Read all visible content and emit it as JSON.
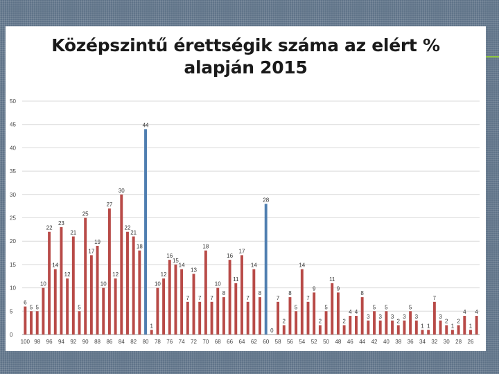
{
  "colors": {
    "background": "#5f7388",
    "panel": "#ffffff",
    "accent": "#8cc63f",
    "bar_default": "#b84a47",
    "bar_highlight": "#4f7eb0",
    "gridline": "#d9d9d9"
  },
  "chart_data": {
    "type": "bar",
    "title_line1": "Középszintű érettségik száma az elért %",
    "title_line2": "alapján 2015",
    "xlabel": "",
    "ylabel": "",
    "ylim": [
      0,
      50
    ],
    "yticks": [
      0,
      5,
      10,
      15,
      20,
      25,
      30,
      35,
      40,
      45,
      50
    ],
    "grid": true,
    "highlight_categories": [
      "80",
      "60"
    ],
    "categories": [
      "100",
      "99",
      "98",
      "97",
      "96",
      "95",
      "94",
      "93",
      "92",
      "91",
      "90",
      "89",
      "88",
      "87",
      "86",
      "85",
      "84",
      "83",
      "82",
      "81",
      "80",
      "79",
      "78",
      "77",
      "76",
      "75",
      "74",
      "73",
      "72",
      "71",
      "70",
      "69",
      "68",
      "67",
      "66",
      "65",
      "64",
      "63",
      "62",
      "61",
      "60",
      "59",
      "58",
      "57",
      "56",
      "55",
      "54",
      "53",
      "52",
      "51",
      "50",
      "49",
      "48",
      "47",
      "46",
      "45",
      "44",
      "43",
      "42",
      "41",
      "40",
      "39",
      "38",
      "37",
      "36",
      "35",
      "34",
      "33",
      "32",
      "31",
      "30",
      "29",
      "28",
      "27",
      "26",
      "25"
    ],
    "values": [
      6,
      5,
      5,
      10,
      22,
      14,
      23,
      12,
      21,
      5,
      25,
      17,
      19,
      10,
      27,
      12,
      30,
      22,
      21,
      18,
      44,
      1,
      10,
      12,
      16,
      15,
      14,
      7,
      13,
      7,
      18,
      7,
      10,
      8,
      16,
      11,
      17,
      7,
      14,
      8,
      28,
      0,
      7,
      2,
      8,
      5,
      14,
      7,
      9,
      2,
      5,
      11,
      9,
      2,
      4,
      4,
      8,
      3,
      5,
      3,
      5,
      3,
      2,
      3,
      5,
      3,
      1,
      1,
      7,
      3,
      2,
      1,
      2,
      4,
      1,
      4
    ]
  }
}
